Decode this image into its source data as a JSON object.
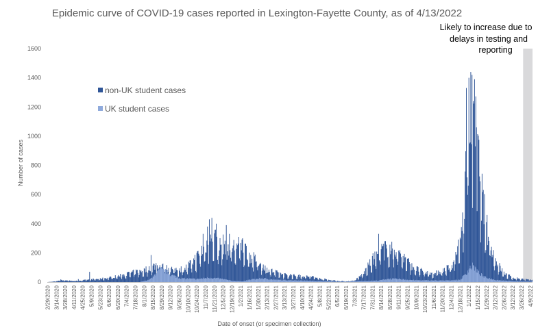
{
  "chart_data": {
    "type": "bar",
    "stacked": true,
    "title": "Epidemic curve of COVID-19 cases reported in Lexington-Fayette County, as of 4/13/2022",
    "xlabel": "Date of onset (or specimen collection)",
    "ylabel": "Number of cases",
    "ylim": [
      0,
      1600
    ],
    "yticks": [
      0,
      200,
      400,
      600,
      800,
      1000,
      1200,
      1400,
      1600
    ],
    "xlim": [
      "2020-02-29",
      "2022-04-12"
    ],
    "xticks": [
      "2/29/2020",
      "3/14/2020",
      "3/28/2020",
      "4/11/2020",
      "4/25/2020",
      "5/9/2020",
      "5/23/2020",
      "6/6/2020",
      "6/20/2020",
      "7/4/2020",
      "7/18/2020",
      "8/1/2020",
      "8/15/2020",
      "8/29/2020",
      "9/12/2020",
      "9/26/2020",
      "10/10/2020",
      "10/24/2020",
      "11/7/2020",
      "11/21/2020",
      "12/5/2020",
      "12/19/2020",
      "1/2/2021",
      "1/16/2021",
      "1/30/2021",
      "2/13/2021",
      "2/27/2021",
      "3/13/2021",
      "3/27/2021",
      "4/10/2021",
      "4/24/2021",
      "5/8/2021",
      "5/22/2021",
      "6/5/2021",
      "6/19/2021",
      "7/3/2021",
      "7/17/2021",
      "7/31/2021",
      "8/14/2021",
      "8/28/2021",
      "9/11/2021",
      "9/25/2021",
      "10/9/2021",
      "10/23/2021",
      "11/6/2021",
      "11/20/2021",
      "12/4/2021",
      "12/18/2021",
      "1/1/2022",
      "1/15/2022",
      "1/29/2022",
      "2/12/2022",
      "2/26/2022",
      "3/12/2022",
      "3/26/2022",
      "4/9/2022"
    ],
    "legend": {
      "placement": "left",
      "entries": [
        "non-UK student cases",
        "UK student cases"
      ]
    },
    "series": [
      {
        "name": "non-UK student cases",
        "color": "#2f5597",
        "points": [
          [
            "2020-02-29",
            0
          ],
          [
            "2020-03-14",
            5
          ],
          [
            "2020-03-21",
            15
          ],
          [
            "2020-03-28",
            12
          ],
          [
            "2020-04-11",
            8
          ],
          [
            "2020-04-25",
            12
          ],
          [
            "2020-05-09",
            18
          ],
          [
            "2020-05-23",
            22
          ],
          [
            "2020-06-06",
            30
          ],
          [
            "2020-06-20",
            40
          ],
          [
            "2020-07-04",
            55
          ],
          [
            "2020-07-18",
            70
          ],
          [
            "2020-08-01",
            80
          ],
          [
            "2020-08-15",
            110
          ],
          [
            "2020-08-29",
            105
          ],
          [
            "2020-09-12",
            90
          ],
          [
            "2020-09-26",
            85
          ],
          [
            "2020-10-10",
            110
          ],
          [
            "2020-10-24",
            170
          ],
          [
            "2020-11-07",
            250
          ],
          [
            "2020-11-14",
            300
          ],
          [
            "2020-11-21",
            320
          ],
          [
            "2020-11-28",
            240
          ],
          [
            "2020-12-05",
            260
          ],
          [
            "2020-12-19",
            240
          ],
          [
            "2021-01-02",
            250
          ],
          [
            "2021-01-09",
            230
          ],
          [
            "2021-01-16",
            180
          ],
          [
            "2021-01-30",
            140
          ],
          [
            "2021-02-13",
            90
          ],
          [
            "2021-02-27",
            65
          ],
          [
            "2021-03-13",
            50
          ],
          [
            "2021-03-27",
            45
          ],
          [
            "2021-04-10",
            42
          ],
          [
            "2021-04-24",
            38
          ],
          [
            "2021-05-08",
            25
          ],
          [
            "2021-05-22",
            15
          ],
          [
            "2021-06-05",
            8
          ],
          [
            "2021-06-19",
            5
          ],
          [
            "2021-07-03",
            10
          ],
          [
            "2021-07-17",
            60
          ],
          [
            "2021-07-31",
            150
          ],
          [
            "2021-08-14",
            220
          ],
          [
            "2021-08-28",
            230
          ],
          [
            "2021-09-11",
            210
          ],
          [
            "2021-09-25",
            140
          ],
          [
            "2021-10-09",
            90
          ],
          [
            "2021-10-23",
            65
          ],
          [
            "2021-11-06",
            60
          ],
          [
            "2021-11-20",
            75
          ],
          [
            "2021-12-04",
            110
          ],
          [
            "2021-12-18",
            260
          ],
          [
            "2021-12-25",
            600
          ],
          [
            "2022-01-01",
            1050
          ],
          [
            "2022-01-08",
            1200
          ],
          [
            "2022-01-15",
            880
          ],
          [
            "2022-01-22",
            600
          ],
          [
            "2022-01-29",
            380
          ],
          [
            "2022-02-12",
            150
          ],
          [
            "2022-02-26",
            60
          ],
          [
            "2022-03-12",
            30
          ],
          [
            "2022-03-26",
            22
          ],
          [
            "2022-04-09",
            15
          ],
          [
            "2022-04-12",
            12
          ]
        ],
        "peaks": [
          [
            "2020-03-21",
            18
          ],
          [
            "2020-04-18",
            20
          ],
          [
            "2020-05-06",
            70
          ],
          [
            "2020-08-12",
            185
          ],
          [
            "2020-08-20",
            130
          ],
          [
            "2020-11-03",
            330
          ],
          [
            "2020-11-10",
            380
          ],
          [
            "2020-11-13",
            430
          ],
          [
            "2020-11-17",
            440
          ],
          [
            "2020-11-24",
            400
          ],
          [
            "2020-12-10",
            390
          ],
          [
            "2020-12-15",
            330
          ],
          [
            "2021-01-05",
            300
          ],
          [
            "2021-08-10",
            330
          ],
          [
            "2021-08-20",
            280
          ],
          [
            "2021-12-28",
            1330
          ],
          [
            "2022-01-01",
            1400
          ],
          [
            "2022-01-04",
            1440
          ],
          [
            "2022-01-06",
            1420
          ],
          [
            "2022-01-10",
            1390
          ],
          [
            "2022-01-13",
            1060
          ]
        ]
      },
      {
        "name": "UK student cases",
        "color": "#8faadc",
        "points": [
          [
            "2020-02-29",
            0
          ],
          [
            "2020-07-25",
            0
          ],
          [
            "2020-08-05",
            10
          ],
          [
            "2020-08-15",
            30
          ],
          [
            "2020-08-20",
            65
          ],
          [
            "2020-08-28",
            85
          ],
          [
            "2020-09-05",
            70
          ],
          [
            "2020-09-15",
            45
          ],
          [
            "2020-09-29",
            25
          ],
          [
            "2020-10-24",
            20
          ],
          [
            "2020-11-14",
            30
          ],
          [
            "2020-12-05",
            20
          ],
          [
            "2020-12-19",
            8
          ],
          [
            "2021-01-05",
            5
          ],
          [
            "2021-01-20",
            18
          ],
          [
            "2021-02-06",
            25
          ],
          [
            "2021-02-27",
            15
          ],
          [
            "2021-04-10",
            10
          ],
          [
            "2021-05-15",
            5
          ],
          [
            "2021-06-15",
            2
          ],
          [
            "2021-08-10",
            10
          ],
          [
            "2021-08-25",
            22
          ],
          [
            "2021-09-11",
            20
          ],
          [
            "2021-10-09",
            12
          ],
          [
            "2021-11-20",
            10
          ],
          [
            "2021-12-18",
            15
          ],
          [
            "2021-12-28",
            60
          ],
          [
            "2022-01-02",
            95
          ],
          [
            "2022-01-08",
            110
          ],
          [
            "2022-01-15",
            70
          ],
          [
            "2022-01-25",
            35
          ],
          [
            "2022-02-12",
            15
          ],
          [
            "2022-03-12",
            5
          ],
          [
            "2022-04-12",
            3
          ]
        ]
      }
    ],
    "shaded_region": {
      "from": "2022-03-29",
      "to": "2022-04-12",
      "color": "#d9d9db"
    },
    "annotation": [
      "Likely to increase due to",
      "delays in testing and",
      "reporting"
    ]
  }
}
